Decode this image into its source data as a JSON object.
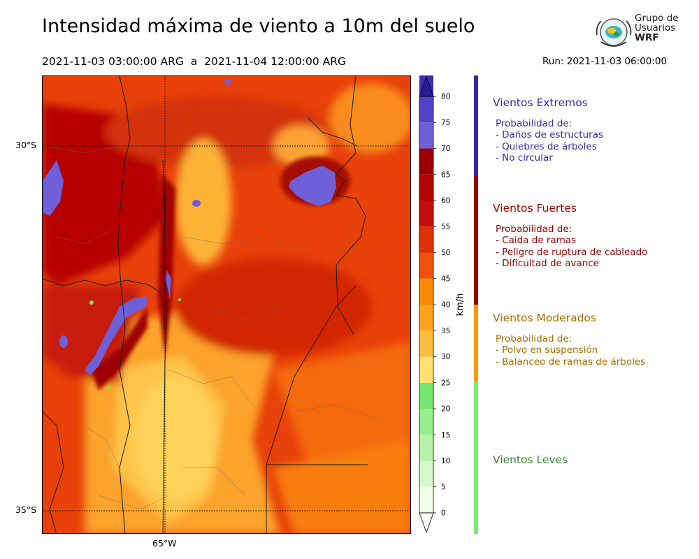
{
  "header": {
    "title": "Intensidad máxima de viento a 10m del suelo",
    "period": "2021-11-03 03:00:00 ARG  a  2021-11-04 12:00:00 ARG",
    "run": "Run: 2021-11-03 06:00:00"
  },
  "logo": {
    "line1": "Grupo de",
    "line2": "Usuarios",
    "line3": "WRF"
  },
  "map": {
    "lat_labels": [
      "30°S",
      "35°S"
    ],
    "lon_labels": [
      "65°W"
    ]
  },
  "colorbar": {
    "unit": "km/h",
    "ticks": [
      "0",
      "5",
      "10",
      "15",
      "20",
      "25",
      "30",
      "35",
      "40",
      "45",
      "50",
      "55",
      "60",
      "65",
      "70",
      "75",
      "80"
    ],
    "colors": [
      "#f1fde9",
      "#d5f9c9",
      "#b7f3a7",
      "#98ee8c",
      "#74e86f",
      "#ffe070",
      "#fdbe3e",
      "#fca21a",
      "#f98a06",
      "#ee5208",
      "#e03008",
      "#c60c08",
      "#b00404",
      "#9c0000",
      "#7060d8",
      "#5442c8",
      "#3c2cb0",
      "#2a1a98"
    ],
    "under_color": "#ffffff",
    "over_color": "#2a1a98"
  },
  "categories": [
    {
      "title": "Vientos Extremos",
      "color": "#3727a8",
      "bar_color": "#3727a8",
      "desc_title": "Probabilidad de:",
      "items": [
        "- Daños de estructuras",
        "- Quiebres de árboles",
        "- No circular"
      ]
    },
    {
      "title": "Vientos Fuertes",
      "color": "#9a0000",
      "bar_color": "#9a0000",
      "desc_title": "Probabilidad de:",
      "items": [
        "- Caida de ramas",
        "- Peligro de ruptura de cableado",
        "- Dificultad de avance"
      ]
    },
    {
      "title": "Vientos Moderados",
      "color": "#a66f00",
      "bar_color": "#ff9900",
      "desc_title": "Probabilidad de:",
      "items": [
        "- Polvo en suspensión",
        "- Balanceo de ramas de árboles"
      ]
    },
    {
      "title": "Vientos Leves",
      "color": "#318832",
      "bar_color": "#76f072"
    }
  ]
}
